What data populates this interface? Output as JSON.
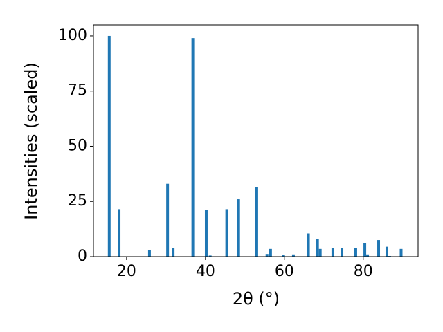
{
  "chart_data": {
    "type": "bar",
    "xlabel": "2θ (°)",
    "ylabel": "Intensities (scaled)",
    "x": [
      15.6,
      18.1,
      25.8,
      30.4,
      31.8,
      36.8,
      40.2,
      41.2,
      45.4,
      48.4,
      53.0,
      55.6,
      56.5,
      59.8,
      62.3,
      66.1,
      68.4,
      69.1,
      72.3,
      74.6,
      78.1,
      80.4,
      81.1,
      83.9,
      86.0,
      86.7,
      89.6
    ],
    "values": [
      100,
      21.5,
      3,
      33,
      4,
      99,
      21,
      0.5,
      21.5,
      26,
      31.5,
      1.2,
      3.5,
      0.7,
      1,
      10.5,
      8,
      3.5,
      4,
      4,
      4,
      6,
      1,
      7.5,
      4.5,
      0.3,
      3.5
    ],
    "color": "#1f77b4",
    "xlim": [
      11.6,
      93.9
    ],
    "xticks": [
      20,
      40,
      60,
      80
    ],
    "ylim": [
      0,
      105
    ],
    "yticks": [
      0,
      25,
      50,
      75,
      100
    ]
  }
}
